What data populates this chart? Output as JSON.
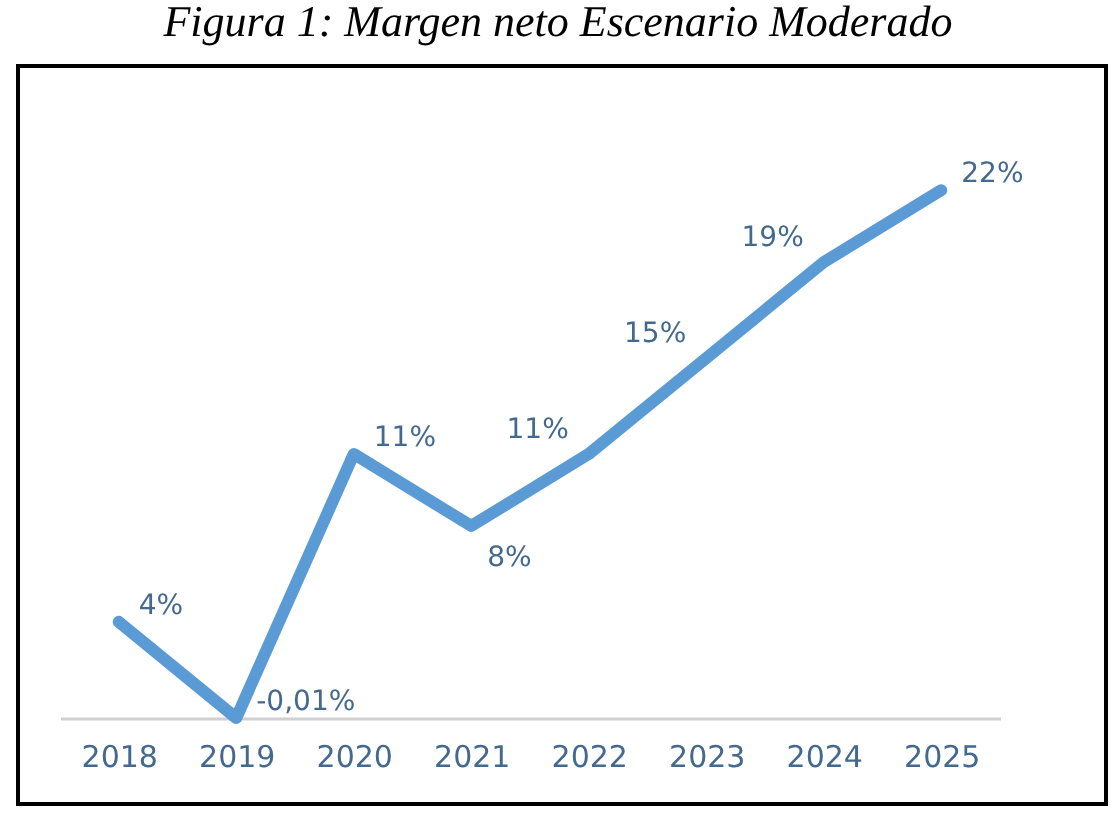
{
  "chart_data": {
    "type": "line",
    "title": "Figura 1: Margen neto Escenario Moderado",
    "categories": [
      "2018",
      "2019",
      "2020",
      "2021",
      "2022",
      "2023",
      "2024",
      "2025"
    ],
    "series": [
      {
        "color": "#5b9bd5",
        "values": [
          4,
          -0.01,
          11,
          8,
          11,
          15,
          19,
          22
        ],
        "value_labels": [
          "4%",
          "-0,01%",
          "11%",
          "8%",
          "11%",
          "15%",
          "19%",
          "22%"
        ]
      }
    ],
    "grid": false,
    "legend": false,
    "marker": "none"
  }
}
